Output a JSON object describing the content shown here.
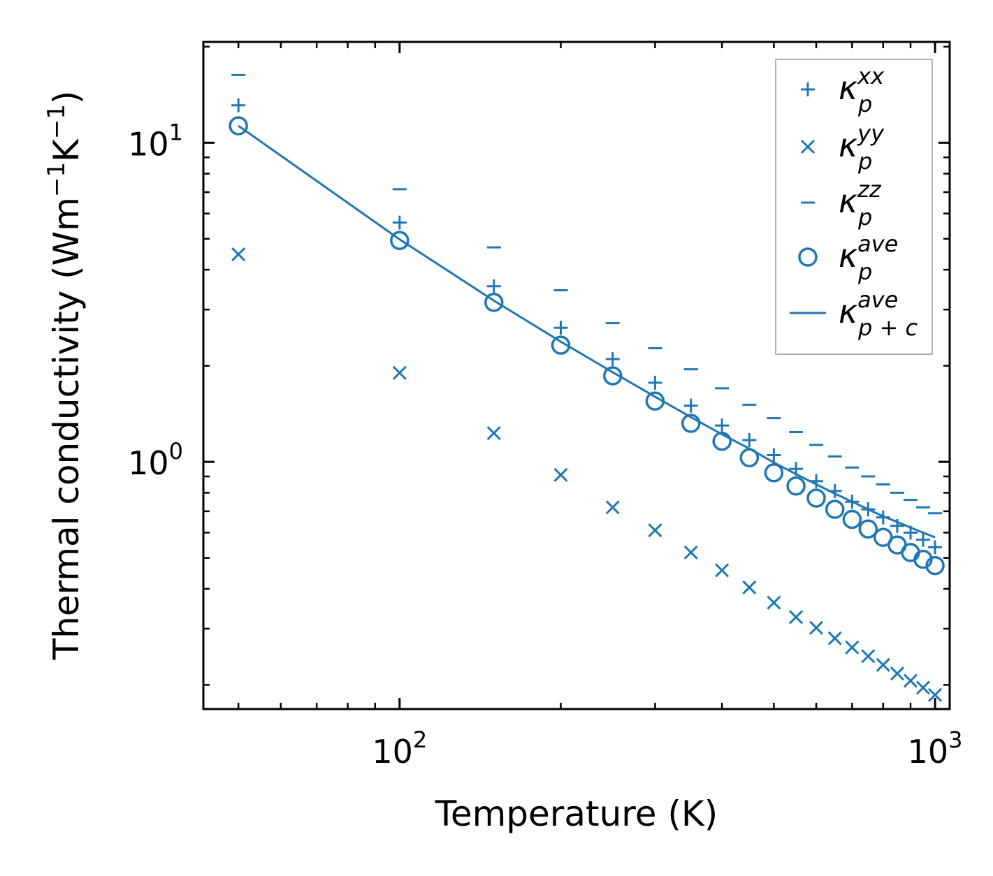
{
  "chart_data": {
    "type": "scatter",
    "title": "",
    "xlabel": "Temperature (K)",
    "ylabel": "Thermal conductivity (Wm",
    "ylabel_sup1": "−1",
    "ylabel_mid": "K",
    "ylabel_sup2": "−1",
    "ylabel_end": ")",
    "xscale": "log",
    "yscale": "log",
    "xlim": [
      43,
      1065
    ],
    "ylim": [
      0.168,
      20.7
    ],
    "x_ticks": [
      {
        "value": 100,
        "base": "10",
        "exp": "2"
      },
      {
        "value": 1000,
        "base": "10",
        "exp": "3"
      }
    ],
    "y_ticks": [
      {
        "value": 1,
        "base": "10",
        "exp": "0"
      },
      {
        "value": 10,
        "base": "10",
        "exp": "1"
      }
    ],
    "x": [
      50,
      100,
      150,
      200,
      250,
      300,
      350,
      400,
      450,
      500,
      550,
      600,
      650,
      700,
      750,
      800,
      850,
      900,
      950,
      1000
    ],
    "series": [
      {
        "name": "kxx",
        "marker": "plus",
        "label_base": "κ",
        "label_sub": "p",
        "label_sup": "xx",
        "values": [
          13.1,
          5.62,
          3.55,
          2.63,
          2.1,
          1.77,
          1.5,
          1.3,
          1.17,
          1.05,
          0.95,
          0.87,
          0.81,
          0.75,
          0.71,
          0.67,
          0.63,
          0.6,
          0.57,
          0.54
        ]
      },
      {
        "name": "kyy",
        "marker": "x",
        "label_base": "κ",
        "label_sub": "p",
        "label_sup": "yy",
        "values": [
          4.47,
          1.9,
          1.23,
          0.91,
          0.72,
          0.61,
          0.52,
          0.457,
          0.404,
          0.362,
          0.326,
          0.302,
          0.28,
          0.262,
          0.246,
          0.231,
          0.217,
          0.206,
          0.196,
          0.186
        ]
      },
      {
        "name": "kzz",
        "marker": "dash",
        "label_base": "κ",
        "label_sub": "p",
        "label_sup": "zz",
        "values": [
          16.3,
          7.15,
          4.7,
          3.45,
          2.72,
          2.27,
          1.95,
          1.7,
          1.51,
          1.37,
          1.24,
          1.13,
          1.04,
          0.96,
          0.9,
          0.85,
          0.8,
          0.76,
          0.72,
          0.69
        ]
      },
      {
        "name": "kave",
        "marker": "circle",
        "label_base": "κ",
        "label_sub": "p",
        "label_sup": "ave",
        "values": [
          11.3,
          4.94,
          3.16,
          2.32,
          1.86,
          1.55,
          1.32,
          1.16,
          1.03,
          0.924,
          0.84,
          0.77,
          0.71,
          0.66,
          0.616,
          0.58,
          0.549,
          0.52,
          0.495,
          0.473
        ]
      },
      {
        "name": "kave_pc",
        "marker": "line",
        "label_base": "κ",
        "label_sub": "p + c",
        "label_sup": "ave",
        "values": [
          11.3,
          4.98,
          3.2,
          2.38,
          1.91,
          1.6,
          1.38,
          1.22,
          1.1,
          0.995,
          0.915,
          0.85,
          0.795,
          0.75,
          0.71,
          0.675,
          0.648,
          0.622,
          0.6,
          0.58
        ]
      }
    ],
    "legend_position": "top-right",
    "grid": false,
    "color": "#1f77b4"
  }
}
